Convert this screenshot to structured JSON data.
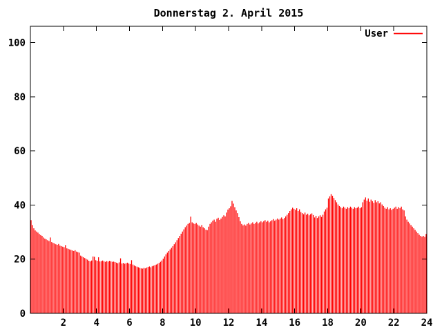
{
  "window": {
    "background": "#ffffff"
  },
  "chart_data": {
    "type": "bar",
    "title": "Donnerstag 2. April 2015",
    "xlabel": "",
    "ylabel": "",
    "grid": false,
    "legend_position": "top-right",
    "axis_color": "#000000",
    "text_color": "#000000",
    "background_color": "#ffffff",
    "xlim": [
      0,
      24
    ],
    "ylim": [
      0,
      106
    ],
    "x_ticks": [
      2,
      4,
      6,
      8,
      10,
      12,
      14,
      16,
      18,
      20,
      22,
      24
    ],
    "y_ticks": [
      0,
      20,
      40,
      60,
      80,
      100
    ],
    "x_unit": "hour of day",
    "x_start_hour": 0,
    "x_step_minutes": 5,
    "bar_style": "impulses",
    "series": [
      {
        "name": "User",
        "color": "#ff0000",
        "values": [
          34.4,
          32.6,
          31.4,
          30.6,
          30.2,
          29.8,
          29.3,
          28.9,
          28.6,
          28.0,
          27.6,
          27.3,
          27.0,
          26.7,
          28.0,
          26.3,
          26.0,
          25.8,
          25.5,
          25.3,
          25.6,
          25.0,
          24.8,
          24.6,
          24.4,
          25.2,
          24.0,
          23.8,
          23.6,
          23.4,
          23.2,
          23.0,
          23.3,
          22.8,
          22.6,
          22.4,
          21.3,
          21.0,
          20.7,
          20.4,
          20.1,
          19.8,
          19.4,
          19.2,
          19.5,
          21.0,
          20.9,
          19.6,
          19.4,
          20.7,
          19.2,
          19.3,
          19.5,
          19.2,
          19.0,
          19.3,
          19.1,
          19.4,
          19.2,
          19.0,
          19.1,
          18.9,
          18.7,
          18.5,
          18.8,
          20.3,
          18.4,
          18.6,
          18.3,
          18.5,
          18.7,
          18.4,
          18.2,
          19.6,
          18.0,
          17.7,
          17.4,
          17.2,
          17.0,
          16.8,
          16.6,
          16.5,
          16.8,
          16.6,
          16.9,
          17.1,
          17.3,
          17.0,
          17.4,
          17.6,
          17.8,
          18.0,
          18.3,
          18.6,
          19.0,
          19.5,
          20.2,
          21.0,
          21.8,
          22.4,
          23.0,
          23.6,
          24.2,
          24.8,
          25.5,
          26.2,
          27.0,
          27.8,
          28.6,
          29.4,
          30.2,
          31.0,
          31.8,
          32.4,
          33.0,
          33.4,
          35.7,
          33.6,
          33.2,
          33.0,
          33.4,
          32.8,
          32.4,
          32.0,
          32.6,
          31.8,
          31.4,
          30.9,
          30.7,
          32.0,
          33.0,
          33.6,
          34.2,
          34.6,
          33.8,
          34.9,
          35.3,
          34.5,
          35.0,
          35.6,
          36.2,
          35.8,
          37.2,
          38.3,
          38.8,
          39.5,
          41.5,
          40.5,
          39.2,
          38.0,
          37.0,
          35.5,
          34.0,
          33.0,
          32.5,
          32.8,
          32.4,
          33.0,
          33.4,
          32.8,
          33.2,
          33.6,
          33.0,
          33.4,
          33.8,
          33.2,
          33.6,
          34.0,
          33.6,
          34.0,
          34.4,
          33.8,
          34.2,
          33.6,
          34.0,
          34.4,
          34.8,
          34.2,
          34.6,
          35.0,
          34.6,
          35.0,
          35.4,
          34.8,
          35.2,
          35.8,
          36.4,
          37.0,
          37.8,
          38.4,
          39.0,
          38.6,
          38.2,
          38.8,
          37.8,
          38.4,
          37.4,
          37.0,
          36.6,
          37.2,
          36.4,
          36.8,
          36.2,
          36.6,
          36.9,
          36.3,
          35.4,
          36.0,
          35.2,
          35.8,
          36.2,
          35.6,
          36.4,
          37.6,
          38.4,
          39.0,
          42.4,
          43.2,
          44.0,
          43.4,
          42.6,
          41.8,
          41.0,
          40.2,
          39.6,
          39.2,
          38.8,
          39.4,
          39.0,
          38.6,
          39.2,
          38.8,
          39.4,
          39.0,
          38.6,
          39.2,
          38.8,
          39.0,
          39.4,
          38.8,
          39.2,
          41.0,
          42.0,
          42.8,
          41.6,
          42.4,
          41.2,
          42.0,
          41.4,
          40.8,
          41.8,
          41.0,
          41.4,
          40.6,
          41.0,
          40.2,
          39.6,
          39.0,
          38.6,
          39.2,
          38.4,
          38.8,
          38.2,
          38.6,
          39.0,
          39.4,
          38.6,
          39.2,
          38.8,
          39.4,
          38.4,
          38.0,
          35.8,
          34.6,
          33.8,
          33.2,
          32.6,
          32.0,
          31.4,
          30.8,
          30.2,
          29.6,
          29.0,
          28.6,
          28.3,
          28.6,
          28.2,
          29.3
        ]
      }
    ]
  }
}
